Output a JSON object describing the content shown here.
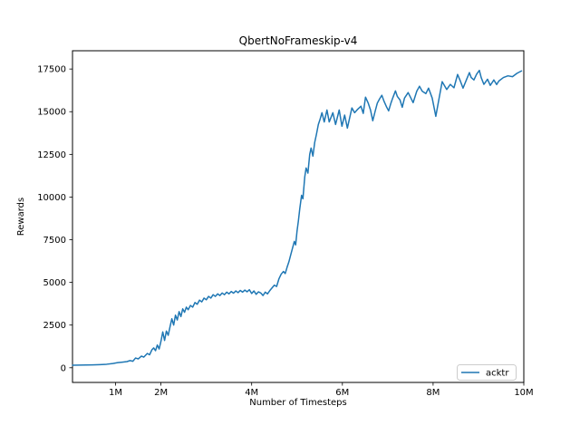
{
  "figure": {
    "title": "QbertNoFrameskip-v4",
    "xlabel": "Number of Timesteps",
    "ylabel": "Rewards"
  },
  "legend": {
    "position": "lower right",
    "items": [
      {
        "label": "acktr",
        "color": "#1f77b4"
      }
    ]
  },
  "colors": {
    "line": "#1f77b4",
    "text": "#000000",
    "spine": "#000000",
    "legend_border": "#cccccc",
    "background": "#ffffff"
  },
  "chart_data": {
    "type": "line",
    "title": "QbertNoFrameskip-v4",
    "xlabel": "Number of Timesteps",
    "ylabel": "Rewards",
    "x_unit": "timesteps_millions",
    "xlim": [
      0.05,
      10.0
    ],
    "ylim": [
      -860,
      18570
    ],
    "grid": false,
    "legend_position": "lower right",
    "xticks": [
      {
        "value": 1,
        "label": "1M"
      },
      {
        "value": 2,
        "label": "2M"
      },
      {
        "value": 4,
        "label": "4M"
      },
      {
        "value": 6,
        "label": "6M"
      },
      {
        "value": 8,
        "label": "8M"
      },
      {
        "value": 10,
        "label": "10M"
      }
    ],
    "yticks": [
      {
        "value": 0,
        "label": "0"
      },
      {
        "value": 2500,
        "label": "2500"
      },
      {
        "value": 5000,
        "label": "5000"
      },
      {
        "value": 7500,
        "label": "7500"
      },
      {
        "value": 10000,
        "label": "10000"
      },
      {
        "value": 12500,
        "label": "12500"
      },
      {
        "value": 15000,
        "label": "15000"
      },
      {
        "value": 17500,
        "label": "17500"
      }
    ],
    "series": [
      {
        "name": "acktr",
        "color": "#1f77b4",
        "x": [
          0.05,
          0.2,
          0.35,
          0.5,
          0.65,
          0.8,
          0.94,
          1.05,
          1.15,
          1.25,
          1.32,
          1.38,
          1.44,
          1.5,
          1.57,
          1.62,
          1.7,
          1.75,
          1.8,
          1.84,
          1.88,
          1.92,
          1.96,
          2.0,
          2.04,
          2.08,
          2.12,
          2.16,
          2.2,
          2.24,
          2.28,
          2.32,
          2.36,
          2.4,
          2.44,
          2.48,
          2.52,
          2.56,
          2.6,
          2.65,
          2.7,
          2.75,
          2.8,
          2.85,
          2.9,
          2.95,
          3.0,
          3.05,
          3.1,
          3.15,
          3.2,
          3.25,
          3.3,
          3.35,
          3.4,
          3.45,
          3.5,
          3.55,
          3.6,
          3.65,
          3.7,
          3.75,
          3.8,
          3.85,
          3.9,
          3.95,
          4.0,
          4.05,
          4.1,
          4.15,
          4.2,
          4.25,
          4.3,
          4.35,
          4.4,
          4.45,
          4.5,
          4.55,
          4.6,
          4.65,
          4.7,
          4.74,
          4.78,
          4.82,
          4.86,
          4.9,
          4.94,
          4.97,
          5.0,
          5.03,
          5.06,
          5.1,
          5.13,
          5.17,
          5.2,
          5.24,
          5.28,
          5.31,
          5.35,
          5.39,
          5.43,
          5.47,
          5.51,
          5.55,
          5.6,
          5.66,
          5.71,
          5.79,
          5.85,
          5.93,
          5.99,
          6.05,
          6.11,
          6.21,
          6.27,
          6.34,
          6.41,
          6.46,
          6.51,
          6.57,
          6.62,
          6.67,
          6.72,
          6.77,
          6.82,
          6.87,
          6.92,
          6.97,
          7.02,
          7.07,
          7.11,
          7.17,
          7.21,
          7.27,
          7.32,
          7.37,
          7.45,
          7.51,
          7.56,
          7.64,
          7.7,
          7.76,
          7.84,
          7.9,
          7.98,
          8.06,
          8.14,
          8.2,
          8.3,
          8.38,
          8.46,
          8.54,
          8.6,
          8.66,
          8.74,
          8.8,
          8.84,
          8.9,
          8.96,
          9.02,
          9.06,
          9.12,
          9.2,
          9.26,
          9.34,
          9.4,
          9.45,
          9.55,
          9.65,
          9.75,
          9.85,
          9.95
        ],
        "y": [
          150,
          155,
          160,
          170,
          185,
          205,
          250,
          300,
          330,
          360,
          420,
          380,
          570,
          520,
          680,
          620,
          840,
          760,
          1050,
          1160,
          1000,
          1330,
          1100,
          1550,
          2100,
          1600,
          2150,
          1900,
          2400,
          2870,
          2500,
          3080,
          2800,
          3290,
          3000,
          3450,
          3250,
          3550,
          3400,
          3650,
          3550,
          3820,
          3720,
          3960,
          3860,
          4080,
          3980,
          4180,
          4080,
          4280,
          4180,
          4330,
          4230,
          4380,
          4280,
          4430,
          4330,
          4470,
          4370,
          4500,
          4400,
          4530,
          4430,
          4550,
          4450,
          4570,
          4350,
          4500,
          4300,
          4450,
          4380,
          4230,
          4430,
          4330,
          4520,
          4680,
          4840,
          4760,
          5200,
          5480,
          5640,
          5520,
          5880,
          6200,
          6600,
          7000,
          7400,
          7200,
          8000,
          8600,
          9300,
          10100,
          9900,
          11170,
          11700,
          11400,
          12500,
          12870,
          12400,
          13200,
          13700,
          14250,
          14570,
          14940,
          14400,
          15100,
          14400,
          14940,
          14250,
          15100,
          14150,
          14800,
          14040,
          15220,
          14940,
          15150,
          15320,
          14900,
          15850,
          15500,
          15100,
          14470,
          15000,
          15500,
          15750,
          15960,
          15600,
          15300,
          15050,
          15500,
          15800,
          16220,
          15900,
          15690,
          15260,
          15800,
          16120,
          15800,
          15530,
          16200,
          16490,
          16200,
          16060,
          16380,
          15800,
          14730,
          15900,
          16760,
          16300,
          16600,
          16400,
          17180,
          16800,
          16380,
          16900,
          17290,
          17000,
          16860,
          17200,
          17420,
          17000,
          16600,
          16900,
          16540,
          16860,
          16590,
          16800,
          17000,
          17100,
          17050,
          17250,
          17390
        ]
      }
    ]
  }
}
